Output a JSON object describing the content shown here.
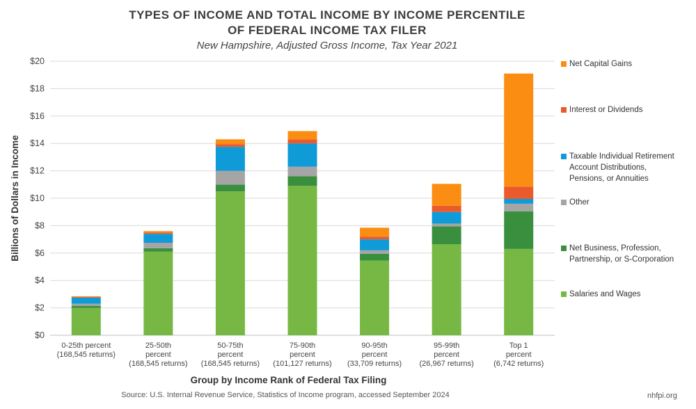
{
  "header": {
    "title_line1": "TYPES OF INCOME AND TOTAL INCOME BY INCOME PERCENTILE",
    "title_line2": "OF FEDERAL INCOME TAX FILER",
    "subtitle": "New Hampshire, Adjusted Gross Income, Tax Year 2021"
  },
  "footer": {
    "source": "Source: U.S. Internal Revenue Service, Statistics of Income program, accessed September 2024",
    "credit": "nhfpi.org"
  },
  "chart_data": {
    "type": "bar",
    "stacked": true,
    "title": "TYPES OF INCOME AND TOTAL INCOME BY INCOME PERCENTILE OF FEDERAL INCOME TAX FILER",
    "subtitle": "New Hampshire, Adjusted Gross Income, Tax Year 2021",
    "xlabel": "Group by Income Rank of Federal Tax Filing",
    "ylabel": "Billions of Dollars in Income",
    "ylim": [
      0,
      20
    ],
    "yticks": [
      0,
      2,
      4,
      6,
      8,
      10,
      12,
      14,
      16,
      18,
      20
    ],
    "ytick_labels": [
      "$0",
      "$2",
      "$4",
      "$6",
      "$8",
      "$10",
      "$12",
      "$14",
      "$16",
      "$18",
      "$20"
    ],
    "grid": true,
    "legend_position": "right",
    "categories": [
      [
        "0-25th percent",
        "(168,545 returns)"
      ],
      [
        "25-50th",
        "percent",
        "(168,545 returns)"
      ],
      [
        "50-75th",
        "percent",
        "(168,545 returns)"
      ],
      [
        "75-90th",
        "percent",
        "(101,127 returns)"
      ],
      [
        "90-95th",
        "percent",
        "(33,709 returns)"
      ],
      [
        "95-99th",
        "percent",
        "(26,967 returns)"
      ],
      [
        "Top 1",
        "percent",
        "(6,742 returns)"
      ]
    ],
    "series": [
      {
        "name": "Salaries and Wages",
        "color": "#76b843",
        "values": [
          2.0,
          6.1,
          10.5,
          10.9,
          5.45,
          6.65,
          6.3
        ]
      },
      {
        "name": "Net Business, Profession, Partnership, or S-Corporation",
        "color": "#3a8f3f",
        "values": [
          0.15,
          0.25,
          0.5,
          0.7,
          0.5,
          1.3,
          2.75
        ]
      },
      {
        "name": "Other",
        "color": "#a5a5a5",
        "values": [
          0.15,
          0.4,
          1.0,
          0.7,
          0.25,
          0.2,
          0.55
        ]
      },
      {
        "name": "Taxable Individual Retirement Account Distributions, Pensions, or Annuities",
        "color": "#0f9ad8",
        "values": [
          0.45,
          0.65,
          1.75,
          1.7,
          0.8,
          0.85,
          0.35
        ]
      },
      {
        "name": "Interest or Dividends",
        "color": "#ea5a2b",
        "values": [
          0.05,
          0.1,
          0.2,
          0.3,
          0.2,
          0.45,
          0.9
        ]
      },
      {
        "name": "Net Capital Gains",
        "color": "#fb8d12",
        "values": [
          0.05,
          0.1,
          0.35,
          0.6,
          0.65,
          1.6,
          8.25
        ]
      }
    ]
  },
  "legend": {
    "items": [
      {
        "label": "Net Capital Gains",
        "color": "#fb8d12"
      },
      {
        "label": "Interest or Dividends",
        "color": "#ea5a2b"
      },
      {
        "label": "Taxable Individual Retirement\nAccount Distributions,\nPensions, or Annuities",
        "color": "#0f9ad8"
      },
      {
        "label": "Other",
        "color": "#a5a5a5"
      },
      {
        "label": "Net Business, Profession,\nPartnership, or S-Corporation",
        "color": "#3a8f3f"
      },
      {
        "label": "Salaries and Wages",
        "color": "#76b843"
      }
    ]
  }
}
